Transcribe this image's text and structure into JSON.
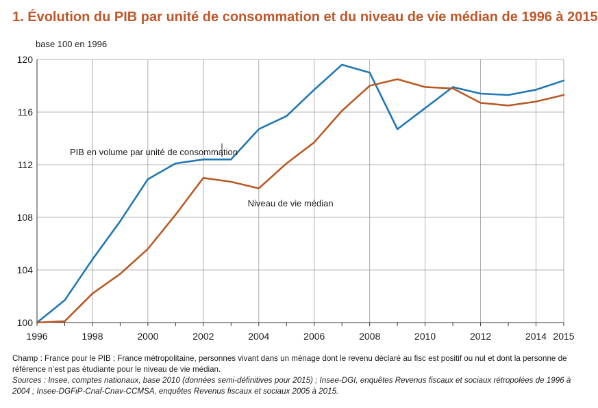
{
  "title": "1. Évolution du PIB par unité de consommation et du niveau de vie médian de 1996 à 2015",
  "unit_label": "base 100 en 1996",
  "notes": {
    "champ": "Champ : France pour le PIB ; France métropolitaine, personnes vivant dans un ménage dont le revenu déclaré au fisc est positif ou nul et dont la personne de référence n’est pas étudiante pour le niveau de vie médian.",
    "sources": "Sources : Insee, comptes nationaux, base 2010 (données semi-définitives pour 2015) ; Insee-DGI, enquêtes Revenus fiscaux et sociaux rétropolées de 1996 à 2004 ; Insee-DGFiP-Cnaf-Cnav-CCMSA, enquêtes Revenus fiscaux et sociaux 2005 à 2015."
  },
  "colors": {
    "title": "#c0572a",
    "pib": "#1f77b4",
    "niveau": "#b85a24",
    "grid": "#9a9a9a"
  },
  "chart_data": {
    "type": "line",
    "x": [
      1996,
      1997,
      1998,
      1999,
      2000,
      2001,
      2002,
      2003,
      2004,
      2005,
      2006,
      2007,
      2008,
      2009,
      2010,
      2011,
      2012,
      2013,
      2014,
      2015
    ],
    "series": [
      {
        "name": "PIB en volume par unité de consommation",
        "color": "#1f77b4",
        "values": [
          100.0,
          101.7,
          104.8,
          107.7,
          110.9,
          112.1,
          112.4,
          112.4,
          114.7,
          115.7,
          117.7,
          119.6,
          119.0,
          114.7,
          116.3,
          117.9,
          117.4,
          117.3,
          117.7,
          118.4
        ]
      },
      {
        "name": "Niveau de vie médian",
        "color": "#b85a24",
        "values": [
          100.0,
          100.1,
          102.2,
          103.7,
          105.6,
          108.2,
          111.0,
          110.7,
          110.2,
          112.1,
          113.7,
          116.1,
          118.0,
          118.5,
          117.9,
          117.8,
          116.7,
          116.5,
          116.8,
          117.3
        ]
      }
    ],
    "ylim": [
      100,
      120
    ],
    "yticks": [
      100,
      104,
      108,
      112,
      116,
      120
    ],
    "xticks": [
      1996,
      1998,
      2000,
      2002,
      2004,
      2006,
      2008,
      2010,
      2012,
      2014,
      2015
    ],
    "xlim": [
      1996,
      2015
    ],
    "grid": true,
    "legend": "inline labels"
  }
}
